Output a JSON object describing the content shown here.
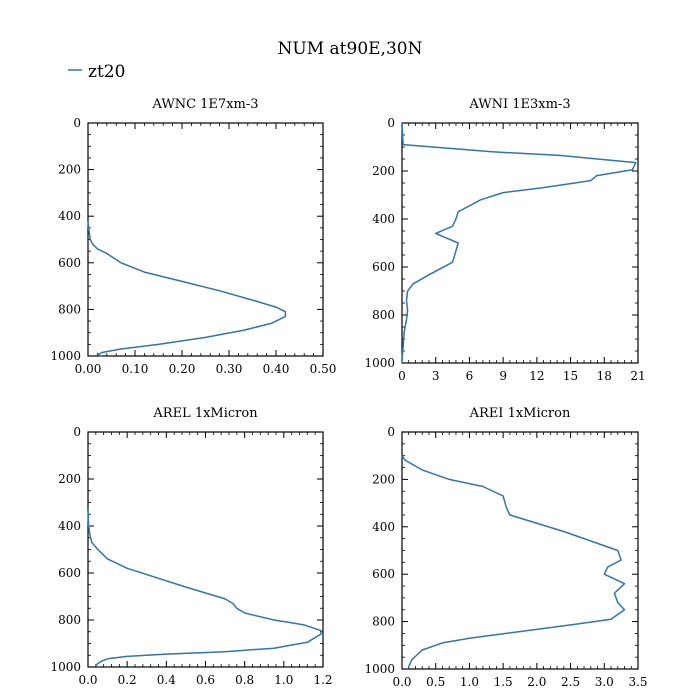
{
  "title": "NUM at90E,30N",
  "legend": {
    "label": "zt20",
    "color": "#3274ad"
  },
  "line_color": "#3274ad",
  "chart_data": [
    {
      "type": "line",
      "title": "AWNC  1E7xm-3",
      "xlabel": "",
      "ylabel": "",
      "xlim": [
        0,
        0.5
      ],
      "ylim": [
        1000,
        0
      ],
      "grid": false,
      "xticks": [
        0,
        0.1,
        0.2,
        0.3,
        0.4,
        0.5
      ],
      "xtick_labels": [
        "0.00",
        "0.10",
        "0.20",
        "0.30",
        "0.40",
        "0.50"
      ],
      "yticks": [
        0,
        200,
        400,
        600,
        800,
        1000
      ],
      "ytick_labels": [
        "0",
        "200",
        "400",
        "600",
        "800",
        "1000"
      ],
      "series": [
        {
          "name": "zt20",
          "x": [
            0,
            0.002,
            0.005,
            0.01,
            0.02,
            0.04,
            0.07,
            0.12,
            0.2,
            0.28,
            0.35,
            0.4,
            0.42,
            0.42,
            0.39,
            0.33,
            0.25,
            0.15,
            0.07,
            0.03,
            0.02,
            0.03
          ],
          "y": [
            420,
            460,
            500,
            520,
            540,
            560,
            600,
            640,
            680,
            720,
            760,
            790,
            810,
            830,
            860,
            890,
            920,
            950,
            970,
            985,
            995,
            1000
          ]
        }
      ]
    },
    {
      "type": "line",
      "title": "AWNI  1E3xm-3",
      "xlabel": "",
      "ylabel": "",
      "xlim": [
        0,
        21
      ],
      "ylim": [
        1000,
        0
      ],
      "grid": false,
      "xticks": [
        0,
        3,
        6,
        9,
        12,
        15,
        18,
        21
      ],
      "xtick_labels": [
        "0",
        "3",
        "6",
        "9",
        "12",
        "15",
        "18",
        "21"
      ],
      "yticks": [
        0,
        200,
        400,
        600,
        800,
        1000
      ],
      "ytick_labels": [
        "0",
        "200",
        "400",
        "600",
        "800",
        "1000"
      ],
      "series": [
        {
          "name": "zt20",
          "x": [
            0,
            0.1,
            8,
            14,
            20.8,
            20.5,
            17.3,
            16.8,
            12.5,
            9,
            7,
            5.8,
            5,
            4.8,
            4.5,
            3,
            5,
            4.5,
            2.5,
            1,
            0.5,
            0.4,
            0.5,
            0.4,
            0.2,
            0.1,
            0,
            0
          ],
          "y": [
            0,
            90,
            120,
            135,
            165,
            195,
            220,
            240,
            270,
            290,
            320,
            350,
            370,
            400,
            430,
            460,
            500,
            580,
            630,
            670,
            700,
            740,
            780,
            820,
            870,
            930,
            990,
            1000
          ]
        }
      ]
    },
    {
      "type": "line",
      "title": "AREL  1xMicron",
      "xlabel": "",
      "ylabel": "",
      "xlim": [
        0,
        1.2
      ],
      "ylim": [
        1000,
        0
      ],
      "grid": false,
      "xticks": [
        0,
        0.2,
        0.4,
        0.6,
        0.8,
        1.0,
        1.2
      ],
      "xtick_labels": [
        "0.0",
        "0.2",
        "0.4",
        "0.6",
        "0.8",
        "1.0",
        "1.2"
      ],
      "yticks": [
        0,
        200,
        400,
        600,
        800,
        1000
      ],
      "ytick_labels": [
        "0",
        "200",
        "400",
        "600",
        "800",
        "1000"
      ],
      "series": [
        {
          "name": "zt20",
          "x": [
            0,
            0.003,
            0.01,
            0.02,
            0.05,
            0.1,
            0.2,
            0.35,
            0.5,
            0.62,
            0.7,
            0.74,
            0.76,
            0.8,
            0.95,
            1.1,
            1.19,
            1.19,
            1.12,
            0.95,
            0.7,
            0.4,
            0.2,
            0.1,
            0.07,
            0.05,
            0.04
          ],
          "y": [
            330,
            400,
            440,
            470,
            500,
            540,
            580,
            620,
            660,
            690,
            710,
            730,
            750,
            770,
            800,
            820,
            845,
            860,
            895,
            920,
            935,
            945,
            955,
            965,
            975,
            985,
            995
          ]
        }
      ]
    },
    {
      "type": "line",
      "title": "AREI  1xMicron",
      "xlabel": "",
      "ylabel": "",
      "xlim": [
        0,
        3.5
      ],
      "ylim": [
        1000,
        0
      ],
      "grid": false,
      "xticks": [
        0,
        0.5,
        1,
        1.5,
        2,
        2.5,
        3,
        3.5
      ],
      "xtick_labels": [
        "0.0",
        "0.5",
        "1.0",
        "1.5",
        "2.0",
        "2.5",
        "3.0",
        "3.5"
      ],
      "yticks": [
        0,
        200,
        400,
        600,
        800,
        1000
      ],
      "ytick_labels": [
        "0",
        "200",
        "400",
        "600",
        "800",
        "1000"
      ],
      "series": [
        {
          "name": "zt20",
          "x": [
            0,
            0.05,
            0.3,
            0.7,
            1.2,
            1.5,
            1.55,
            1.6,
            2.4,
            3.2,
            3.25,
            3.05,
            3.0,
            3.3,
            3.15,
            3.2,
            3.3,
            3.1,
            2.6,
            1.8,
            1.0,
            0.6,
            0.3,
            0.15,
            0.1
          ],
          "y": [
            100,
            120,
            160,
            200,
            230,
            270,
            320,
            350,
            420,
            500,
            540,
            570,
            600,
            640,
            680,
            720,
            750,
            790,
            810,
            840,
            870,
            890,
            920,
            960,
            990
          ]
        }
      ]
    }
  ]
}
